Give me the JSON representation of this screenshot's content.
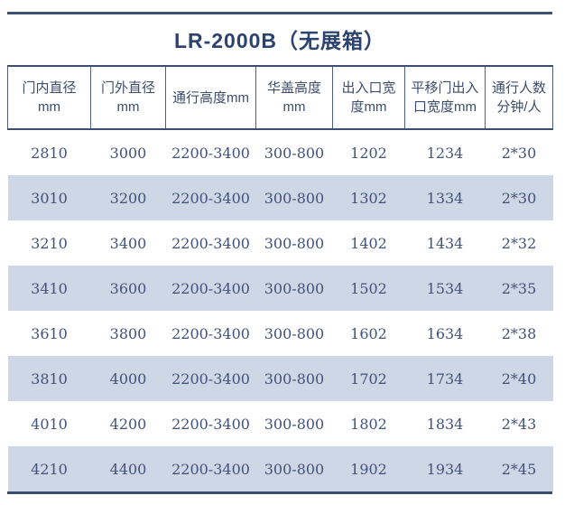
{
  "title": "LR-2000B（无展箱）",
  "table": {
    "headers": [
      "门内直径\nmm",
      "门外直径\nmm",
      "通行高度mm",
      "华盖高度\nmm",
      "出入口宽\n度mm",
      "平移门出入\n口宽度mm",
      "通行人数\n分钟/人"
    ],
    "rows": [
      [
        "2810",
        "3000",
        "2200-3400",
        "300-800",
        "1202",
        "1234",
        "2*30"
      ],
      [
        "3010",
        "3200",
        "2200-3400",
        "300-800",
        "1302",
        "1334",
        "2*30"
      ],
      [
        "3210",
        "3400",
        "2200-3400",
        "300-800",
        "1402",
        "1434",
        "2*32"
      ],
      [
        "3410",
        "3600",
        "2200-3400",
        "300-800",
        "1502",
        "1534",
        "2*35"
      ],
      [
        "3610",
        "3800",
        "2200-3400",
        "300-800",
        "1602",
        "1634",
        "2*38"
      ],
      [
        "3810",
        "4000",
        "2200-3400",
        "300-800",
        "1702",
        "1734",
        "2*40"
      ],
      [
        "4010",
        "4200",
        "2200-3400",
        "300-800",
        "1802",
        "1834",
        "2*43"
      ],
      [
        "4210",
        "4400",
        "2200-3400",
        "300-800",
        "1902",
        "1934",
        "2*45"
      ]
    ]
  },
  "colors": {
    "accent_navy": "#2c436f",
    "rule_line": "#3b4d70",
    "header_divider": "#515f7e",
    "row_stripe": "#ced7e5",
    "cell_text": "#42527a",
    "header_text": "#3d4d6e"
  }
}
